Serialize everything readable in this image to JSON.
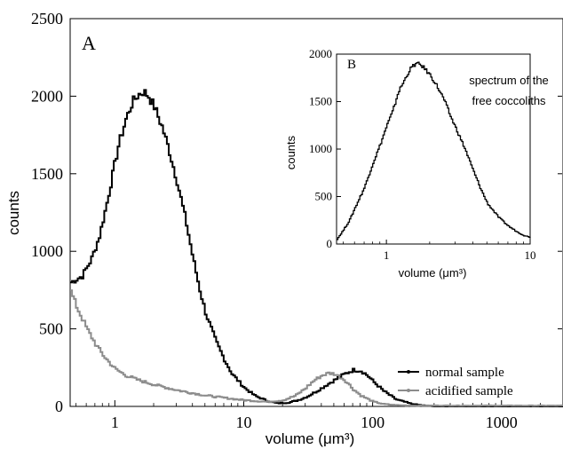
{
  "chart_data": [
    {
      "type": "line",
      "panel": "A",
      "xlabel": "volume (μm³)",
      "ylabel": "counts",
      "x_scale": "log",
      "xlim": [
        0.45,
        3000
      ],
      "ylim": [
        0,
        2500
      ],
      "x_ticks": [
        1,
        10,
        100,
        1000
      ],
      "x_tick_labels": [
        "1",
        "10",
        "100",
        "1000"
      ],
      "y_ticks": [
        0,
        500,
        1000,
        1500,
        2000,
        2500
      ],
      "y_tick_labels": [
        "0",
        "500",
        "1000",
        "1500",
        "2000",
        "2500"
      ],
      "grid": false,
      "legend": "bottom-right",
      "series": [
        {
          "name": "normal sample",
          "color": "#000000",
          "x": [
            0.45,
            0.55,
            0.65,
            0.75,
            0.85,
            0.95,
            1.05,
            1.2,
            1.35,
            1.5,
            1.65,
            1.8,
            2.0,
            2.3,
            2.6,
            3.0,
            3.5,
            4.0,
            4.5,
            5.0,
            6.0,
            7.0,
            8.0,
            10,
            12,
            15,
            18,
            22,
            26,
            30,
            35,
            40,
            50,
            60,
            70,
            80,
            90,
            100,
            120,
            150,
            200,
            250,
            300,
            400,
            600,
            1000,
            2000,
            3000
          ],
          "y": [
            800,
            840,
            950,
            1100,
            1300,
            1500,
            1680,
            1850,
            1960,
            2010,
            2030,
            2000,
            1930,
            1800,
            1650,
            1450,
            1200,
            950,
            750,
            600,
            420,
            300,
            210,
            120,
            70,
            35,
            20,
            25,
            40,
            60,
            90,
            120,
            170,
            210,
            235,
            230,
            200,
            160,
            100,
            45,
            15,
            5,
            0,
            0,
            0,
            0,
            0,
            0
          ]
        },
        {
          "name": "acidified sample",
          "color": "#8c8c8c",
          "x": [
            0.45,
            0.5,
            0.6,
            0.7,
            0.8,
            0.9,
            1.0,
            1.2,
            1.5,
            2.0,
            2.5,
            3.0,
            4.0,
            5.0,
            7.0,
            10,
            15,
            20,
            25,
            30,
            35,
            40,
            45,
            50,
            60,
            70,
            80,
            100,
            120,
            150,
            200,
            300,
            500,
            1000,
            3000
          ],
          "y": [
            740,
            640,
            500,
            400,
            330,
            280,
            240,
            200,
            170,
            140,
            120,
            105,
            85,
            70,
            55,
            40,
            30,
            40,
            70,
            120,
            170,
            200,
            215,
            210,
            170,
            110,
            70,
            30,
            15,
            8,
            5,
            5,
            5,
            5,
            5
          ]
        }
      ]
    },
    {
      "type": "line",
      "panel": "B",
      "xlabel": "volume (μm³)",
      "ylabel": "counts",
      "x_scale": "log",
      "xlim": [
        0.45,
        10
      ],
      "ylim": [
        0,
        2000
      ],
      "x_ticks": [
        1,
        10
      ],
      "x_tick_labels": [
        "1",
        "10"
      ],
      "y_ticks": [
        0,
        500,
        1000,
        1500,
        2000
      ],
      "y_tick_labels": [
        "0",
        "500",
        "1000",
        "1500",
        "2000"
      ],
      "annotation": [
        "spectrum of the",
        "free coccoliths"
      ],
      "series": [
        {
          "color": "#000000",
          "x": [
            0.45,
            0.5,
            0.55,
            0.6,
            0.7,
            0.8,
            0.9,
            1.0,
            1.1,
            1.2,
            1.3,
            1.4,
            1.5,
            1.6,
            1.7,
            1.8,
            2.0,
            2.2,
            2.5,
            2.8,
            3.0,
            3.5,
            4.0,
            4.5,
            5.0,
            6.0,
            7.0,
            8.0,
            9.0,
            10
          ],
          "y": [
            50,
            150,
            250,
            380,
            600,
            850,
            1050,
            1250,
            1400,
            1600,
            1700,
            1800,
            1870,
            1900,
            1890,
            1860,
            1780,
            1680,
            1520,
            1330,
            1230,
            1000,
            770,
            580,
            430,
            280,
            190,
            130,
            90,
            70
          ]
        }
      ]
    }
  ]
}
